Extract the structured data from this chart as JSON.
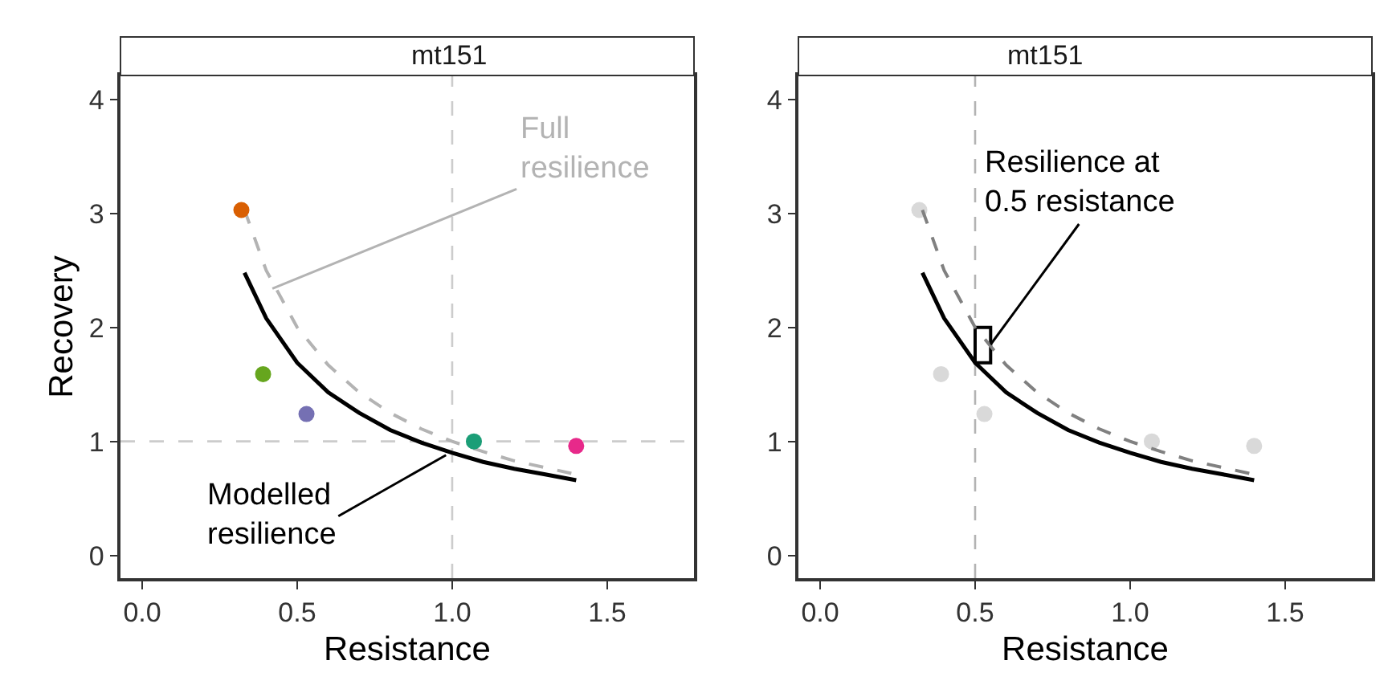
{
  "chart_data": [
    {
      "type": "scatter",
      "title": "mt151",
      "xlabel": "Resistance",
      "ylabel": "Recovery",
      "xlim": [
        -0.07,
        1.78
      ],
      "ylim": [
        -0.2,
        4.21
      ],
      "xticks": [
        {
          "value": 0,
          "label": "0.0"
        },
        {
          "value": 0.5,
          "label": "0.5"
        },
        {
          "value": 1,
          "label": "1.0"
        },
        {
          "value": 1.5,
          "label": "1.5"
        }
      ],
      "yticks": [
        0,
        1,
        2,
        3,
        4
      ],
      "ref_lines": [
        {
          "axis": "x",
          "value": 1,
          "color": "#cccccc",
          "line_style": "dashed"
        },
        {
          "axis": "y",
          "value": 1,
          "color": "#cccccc",
          "line_style": "dashed"
        }
      ],
      "series": [
        {
          "type": "line",
          "line_style": "dashed",
          "color": "#b3b3b3",
          "x": [
            0.33,
            0.4,
            0.5,
            0.6,
            0.7,
            0.8,
            0.9,
            1.0,
            1.1,
            1.2,
            1.3,
            1.4
          ],
          "values": [
            3.03,
            2.5,
            2.0,
            1.67,
            1.43,
            1.25,
            1.11,
            1.0,
            0.91,
            0.83,
            0.77,
            0.71
          ]
        },
        {
          "type": "line",
          "color": "#000000",
          "x": [
            0.33,
            0.4,
            0.5,
            0.6,
            0.7,
            0.8,
            0.9,
            1.0,
            1.1,
            1.2,
            1.3,
            1.4
          ],
          "values": [
            2.48,
            2.08,
            1.69,
            1.43,
            1.25,
            1.1,
            0.99,
            0.9,
            0.82,
            0.76,
            0.71,
            0.66
          ]
        },
        {
          "marker": "circle",
          "x": [
            0.32,
            0.39,
            0.53,
            1.07,
            1.4
          ],
          "values": [
            3.03,
            1.59,
            1.24,
            1.0,
            0.96
          ],
          "colors": [
            "#d95f02",
            "#66a61e",
            "#7570b3",
            "#1b9e77",
            "#e7298a"
          ]
        }
      ],
      "annotations": [
        {
          "text": "Full\nresilience",
          "x": 0.42,
          "y": 2.34
        },
        {
          "text": "Modelled\nresilience",
          "x": 0.98,
          "y": 0.88
        }
      ]
    },
    {
      "type": "scatter",
      "title": "mt151",
      "xlabel": "Resistance",
      "xlim": [
        -0.07,
        1.78
      ],
      "ylim": [
        -0.2,
        4.21
      ],
      "xticks": [
        {
          "value": 0,
          "label": "0.0"
        },
        {
          "value": 0.5,
          "label": "0.5"
        },
        {
          "value": 1,
          "label": "1.0"
        },
        {
          "value": 1.5,
          "label": "1.5"
        }
      ],
      "yticks": [
        0,
        1,
        2,
        3,
        4
      ],
      "ref_lines": [
        {
          "axis": "x",
          "value": 0.5,
          "color": "#b3b3b3",
          "line_style": "dashed"
        }
      ],
      "series": [
        {
          "marker": "circle",
          "x": [
            0.32,
            0.39,
            0.53,
            1.07,
            1.4
          ],
          "values": [
            3.03,
            1.59,
            1.24,
            1.0,
            0.96
          ],
          "color": "#d9d9d9"
        },
        {
          "type": "line",
          "line_style": "dashed",
          "color": "#808080",
          "x": [
            0.33,
            0.4,
            0.5,
            0.6,
            0.7,
            0.8,
            0.9,
            1.0,
            1.1,
            1.2,
            1.3,
            1.4
          ],
          "values": [
            3.03,
            2.5,
            2.0,
            1.67,
            1.43,
            1.25,
            1.11,
            1.0,
            0.91,
            0.83,
            0.77,
            0.71
          ]
        },
        {
          "type": "line",
          "color": "#000000",
          "x": [
            0.33,
            0.4,
            0.5,
            0.6,
            0.7,
            0.8,
            0.9,
            1.0,
            1.1,
            1.2,
            1.3,
            1.4
          ],
          "values": [
            2.48,
            2.08,
            1.69,
            1.43,
            1.25,
            1.1,
            0.99,
            0.9,
            0.82,
            0.76,
            0.71,
            0.66
          ]
        },
        {
          "type": "bar",
          "color": "#ffffff",
          "x": [
            0.525
          ],
          "base": [
            1.69
          ],
          "values": [
            0.31
          ]
        }
      ],
      "annotations": [
        {
          "text": "Resilience at\n0.5 resistance",
          "x": 0.55,
          "y": 1.85
        }
      ]
    }
  ]
}
